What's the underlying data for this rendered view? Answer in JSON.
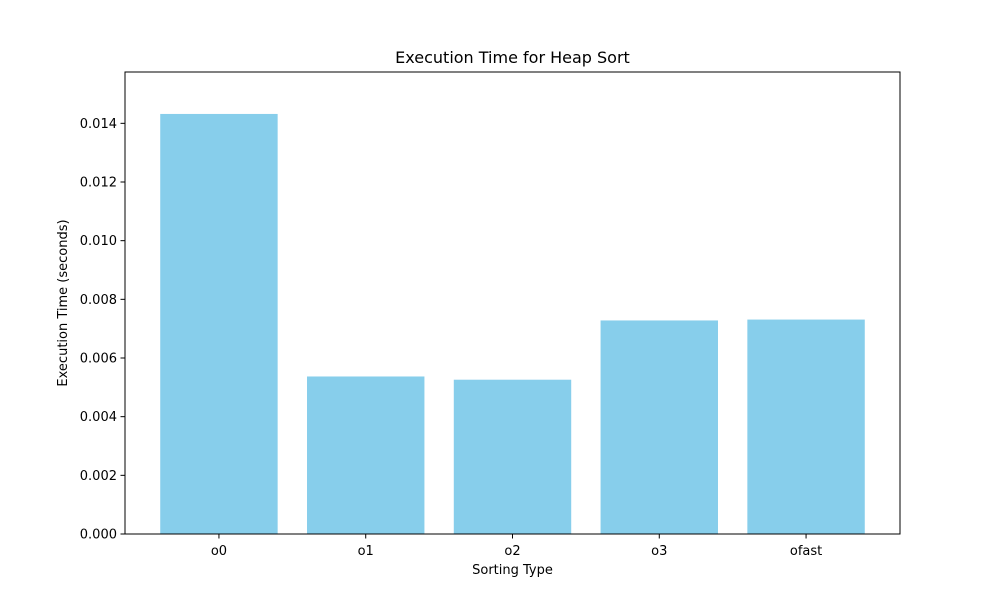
{
  "chart_data": {
    "type": "bar",
    "title": "Execution Time for Heap Sort",
    "xlabel": "Sorting Type",
    "ylabel": "Execution Time (seconds)",
    "categories": [
      "o0",
      "o1",
      "o2",
      "o3",
      "ofast"
    ],
    "values": [
      0.01432,
      0.00537,
      0.00526,
      0.00728,
      0.00731
    ],
    "ylim": [
      0,
      0.01575
    ],
    "yticks": [
      0.0,
      0.002,
      0.004,
      0.006,
      0.008,
      0.01,
      0.012,
      0.014
    ],
    "ytick_labels": [
      "0.000",
      "0.002",
      "0.004",
      "0.006",
      "0.008",
      "0.010",
      "0.012",
      "0.014"
    ],
    "bar_color": "#87ceeb",
    "grid": false,
    "legend": "none"
  }
}
